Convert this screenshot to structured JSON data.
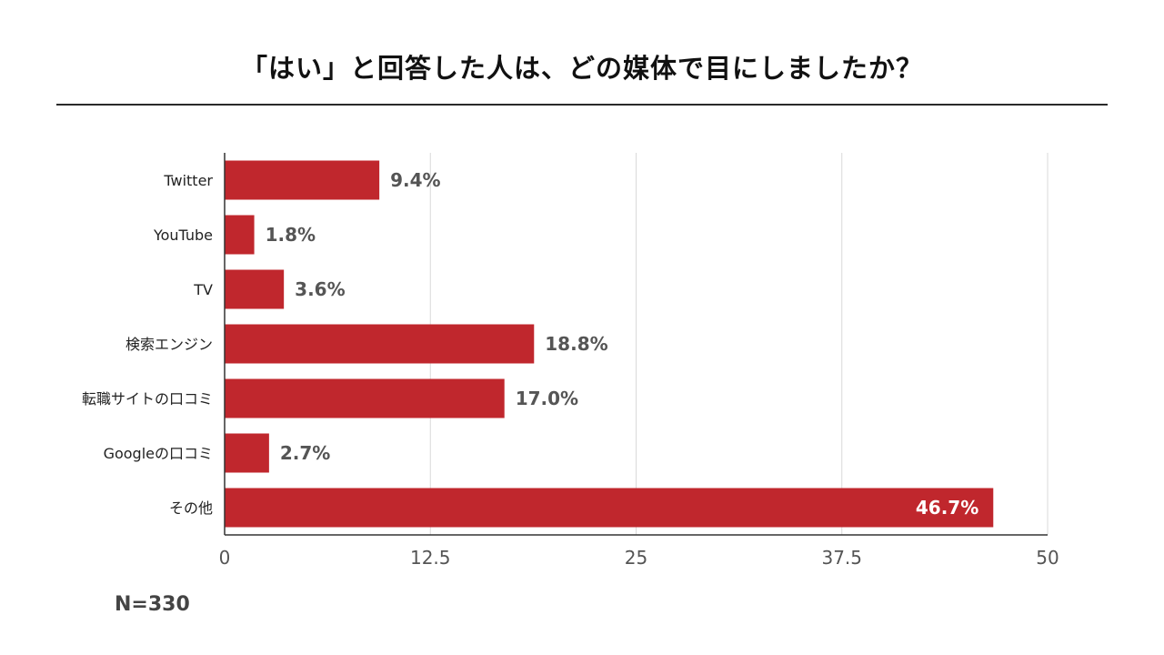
{
  "header": {
    "title": "「はい」と回答した人は、どの媒体で目にしましたか？"
  },
  "chart_data": {
    "type": "bar",
    "orientation": "horizontal",
    "categories": [
      "Twitter",
      "YouTube",
      "TV",
      "検索エンジン",
      "転職サイトの口コミ",
      "Googleの口コミ",
      "その他"
    ],
    "values": [
      9.4,
      1.8,
      3.6,
      18.8,
      17.0,
      2.7,
      46.7
    ],
    "value_labels": [
      "9.4%",
      "1.8%",
      "3.6%",
      "18.8%",
      "17.0%",
      "2.7%",
      "46.7%"
    ],
    "xticks": [
      0,
      12.5,
      25,
      37.5,
      50
    ],
    "xtick_labels": [
      "0",
      "12.5",
      "25",
      "37.5",
      "50"
    ],
    "xlim": [
      0,
      50
    ],
    "grid": "vertical",
    "bar_color": "#c0272d",
    "label_color_outside": "#555555",
    "label_color_inside": "#ffffff"
  },
  "footer": {
    "note": "N=330"
  }
}
